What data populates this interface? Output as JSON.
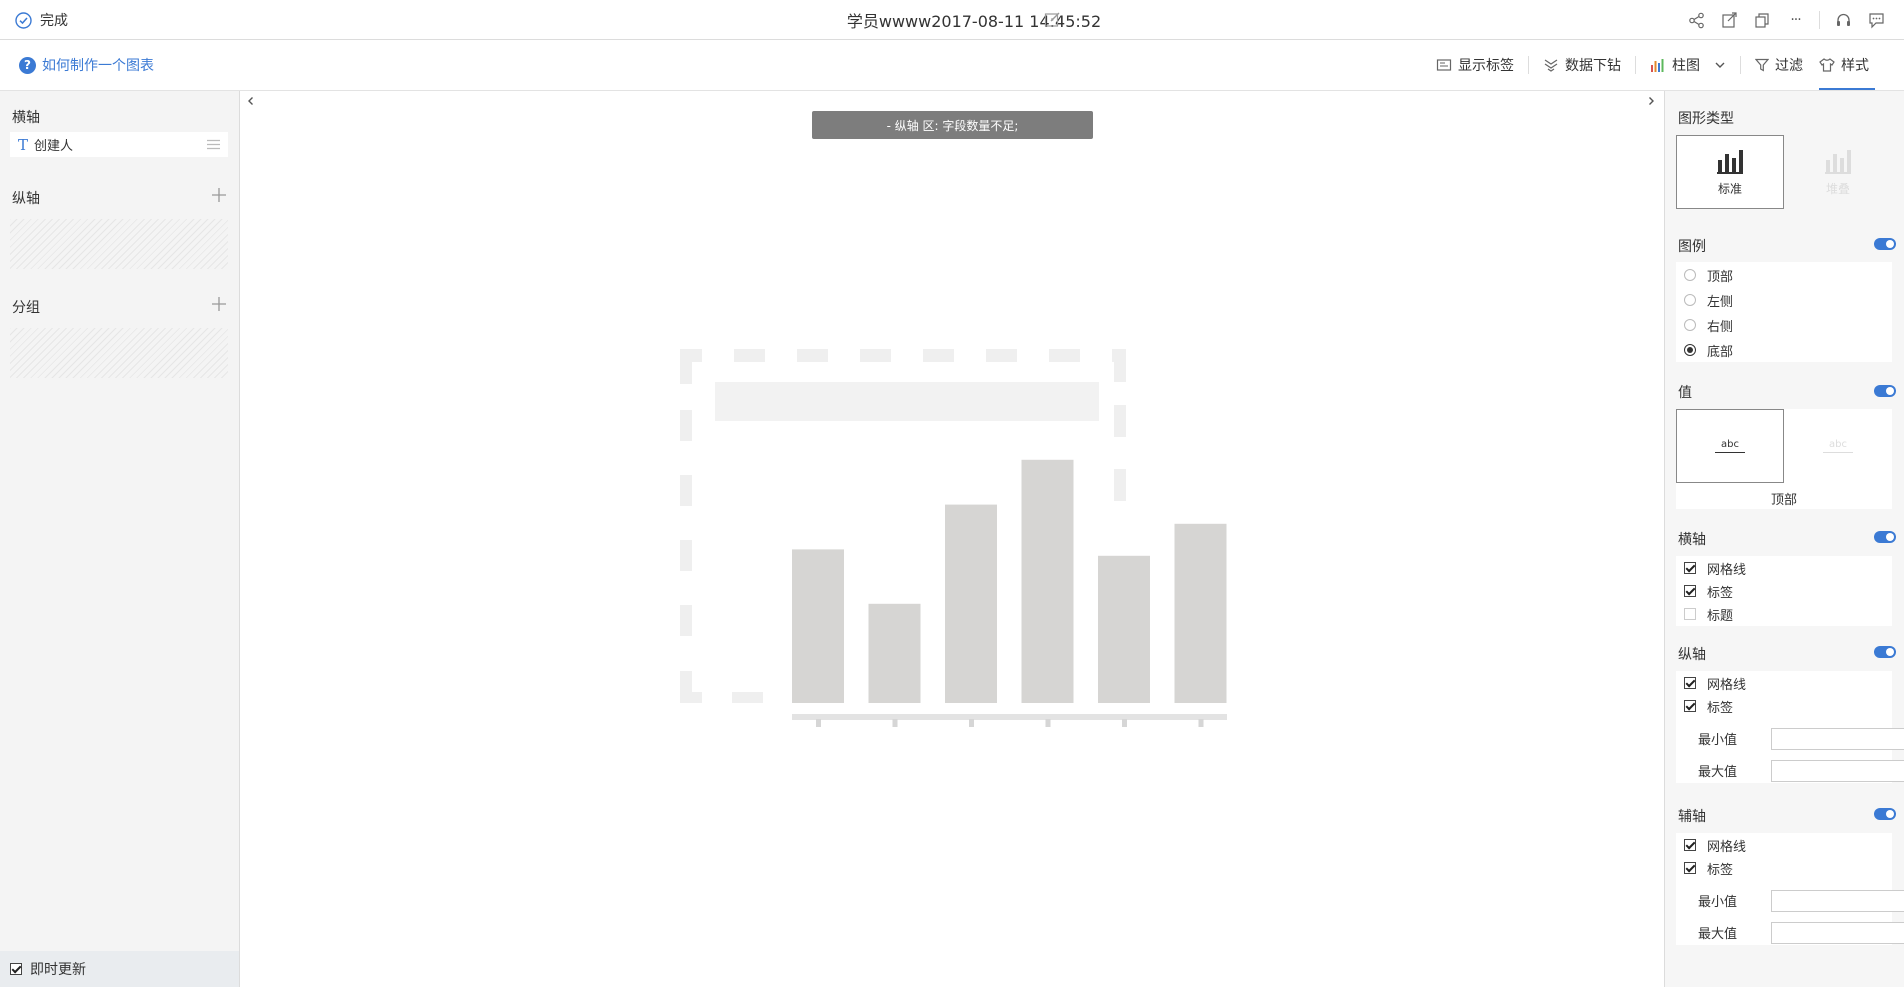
{
  "topbar": {
    "done_label": "完成",
    "title": "学员wwww2017-08-11 14:45:52",
    "icons": [
      "share-icon",
      "export-icon",
      "copy-icon",
      "more-icon",
      "support-icon",
      "message-icon"
    ],
    "more_glyph": "···"
  },
  "toolbar": {
    "help_label": "如何制作一个图表",
    "help_glyph": "?",
    "show_labels": "显示标签",
    "drilldown": "数据下钻",
    "chart_type": "柱图",
    "filter": "过滤",
    "style": "样式"
  },
  "left": {
    "x_axis_label": "横轴",
    "x_field": "创建人",
    "x_field_type_glyph": "T",
    "y_axis_label": "纵轴",
    "group_label": "分组",
    "instant_update": "即时更新"
  },
  "canvas": {
    "warning": "- 纵轴 区: 字段数量不足;",
    "placeholder_bar_values": [
      96,
      62,
      124,
      152,
      92,
      112
    ]
  },
  "right": {
    "chart_type_title": "图形类型",
    "type_standard": "标准",
    "type_stacked": "堆叠",
    "legend_title": "图例",
    "legend_options": [
      "顶部",
      "左侧",
      "右侧",
      "底部"
    ],
    "legend_selected": "底部",
    "value_title": "值",
    "value_card_text": "abc",
    "value_position": "顶部",
    "x_axis_title": "横轴",
    "x_axis_options": [
      {
        "label": "网格线",
        "checked": true
      },
      {
        "label": "标签",
        "checked": true
      },
      {
        "label": "标题",
        "checked": false
      }
    ],
    "y_axis_title": "纵轴",
    "y_axis_options": [
      {
        "label": "网格线",
        "checked": true
      },
      {
        "label": "标签",
        "checked": true
      }
    ],
    "min_label": "最小值",
    "max_label": "最大值",
    "aux_axis_title": "辅轴",
    "aux_axis_options": [
      {
        "label": "网格线",
        "checked": true
      },
      {
        "label": "标签",
        "checked": true
      }
    ]
  },
  "colors": {
    "accent": "#3b7ad4",
    "warning_bg": "#7d7d7d",
    "placeholder_bar": "#d6d5d3",
    "placeholder_dash": "#eeeeee"
  }
}
